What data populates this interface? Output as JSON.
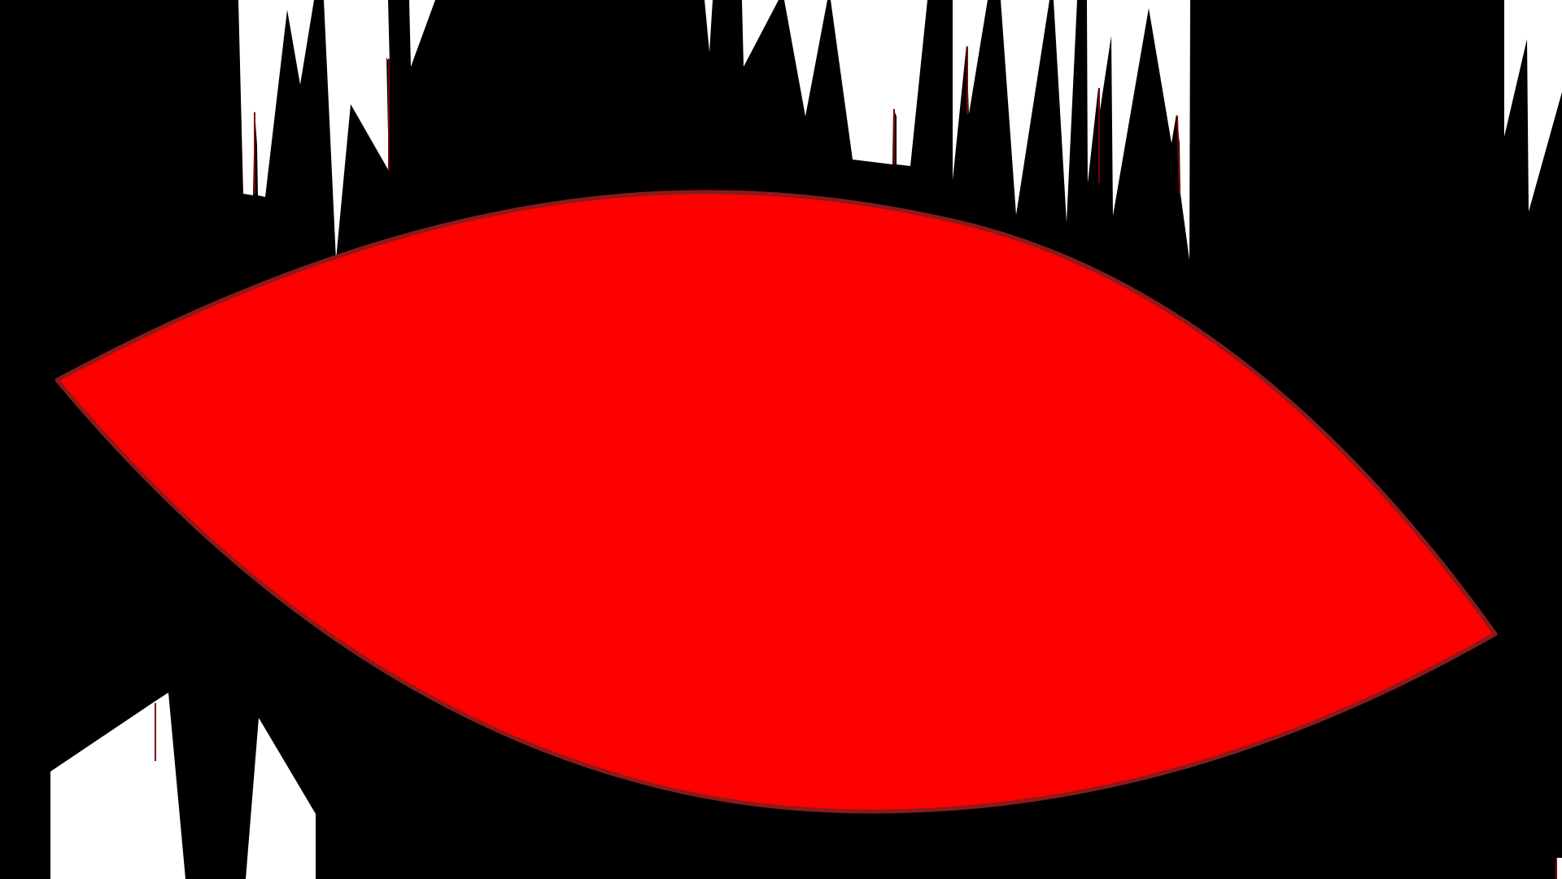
{
  "artwork": {
    "background_color": "#ffffff",
    "ink_color": "#000000",
    "eye_fill_color": "#ff0000",
    "eye_outline_color": "#8b1a1a",
    "sliver_color": "#7a0000"
  }
}
